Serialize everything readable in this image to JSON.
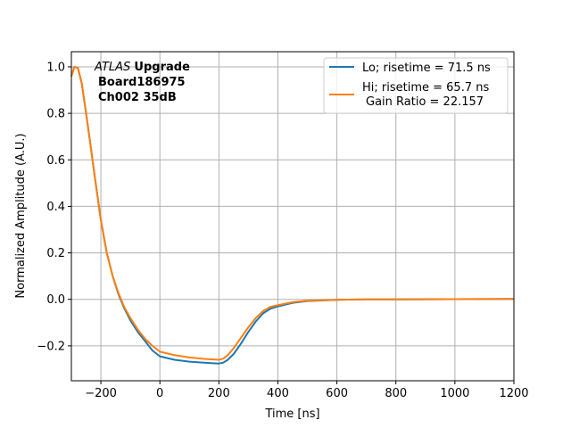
{
  "chart_data": {
    "type": "line",
    "title": "",
    "xlabel": "Time [ns]",
    "ylabel": "Normalized Amplitude (A.U.)",
    "xlim": [
      -300,
      1200
    ],
    "ylim": [
      -0.35,
      1.065
    ],
    "xticks": [
      -200,
      0,
      200,
      400,
      600,
      800,
      1000,
      1200
    ],
    "xtick_labels": [
      "−200",
      "0",
      "200",
      "400",
      "600",
      "800",
      "1000",
      "1200"
    ],
    "yticks": [
      -0.2,
      0.0,
      0.2,
      0.4,
      0.6,
      0.8,
      1.0
    ],
    "ytick_labels": [
      "−0.2",
      "0.0",
      "0.2",
      "0.4",
      "0.6",
      "0.8",
      "1.0"
    ],
    "grid": true,
    "legend_position": "top-right",
    "annotation": {
      "italic": "ATLAS",
      "bold": "Upgrade",
      "line2": "Board186975",
      "line3": "Ch002 35dB"
    },
    "series": [
      {
        "name": "Lo; risetime = 71.5 ns",
        "color": "#1f77b4",
        "x": [
          -300,
          -290,
          -278,
          -265,
          -250,
          -240,
          -220,
          -200,
          -180,
          -160,
          -140,
          -120,
          -100,
          -75,
          -50,
          -25,
          0,
          50,
          100,
          150,
          200,
          215,
          230,
          250,
          275,
          300,
          325,
          350,
          375,
          400,
          450,
          500,
          600,
          700,
          800,
          1000,
          1200
        ],
        "y": [
          0.96,
          1.0,
          0.995,
          0.93,
          0.8,
          0.71,
          0.52,
          0.34,
          0.2,
          0.1,
          0.02,
          -0.04,
          -0.09,
          -0.14,
          -0.18,
          -0.22,
          -0.245,
          -0.26,
          -0.268,
          -0.272,
          -0.276,
          -0.272,
          -0.26,
          -0.235,
          -0.19,
          -0.14,
          -0.095,
          -0.06,
          -0.04,
          -0.03,
          -0.015,
          -0.007,
          -0.002,
          0,
          0,
          0.001,
          0.002
        ]
      },
      {
        "name": "Hi; risetime = 65.7 ns\n Gain Ratio = 22.157",
        "color": "#ff7f0e",
        "x": [
          -300,
          -290,
          -278,
          -265,
          -250,
          -240,
          -220,
          -200,
          -180,
          -160,
          -140,
          -120,
          -100,
          -75,
          -50,
          -25,
          0,
          50,
          100,
          150,
          200,
          215,
          230,
          250,
          275,
          300,
          325,
          350,
          375,
          400,
          450,
          500,
          600,
          700,
          800,
          1000,
          1200
        ],
        "y": [
          0.96,
          1.0,
          0.995,
          0.93,
          0.8,
          0.71,
          0.52,
          0.34,
          0.2,
          0.1,
          0.025,
          -0.035,
          -0.08,
          -0.13,
          -0.17,
          -0.2,
          -0.225,
          -0.24,
          -0.25,
          -0.256,
          -0.26,
          -0.255,
          -0.24,
          -0.21,
          -0.165,
          -0.12,
          -0.08,
          -0.05,
          -0.032,
          -0.025,
          -0.012,
          -0.006,
          -0.002,
          0,
          0,
          0.001,
          0.002
        ]
      }
    ],
    "legend": {
      "lo_label": "Lo; risetime = 71.5 ns",
      "hi_label_1": "Hi; risetime = 65.7 ns",
      "hi_label_2": " Gain Ratio = 22.157"
    }
  }
}
